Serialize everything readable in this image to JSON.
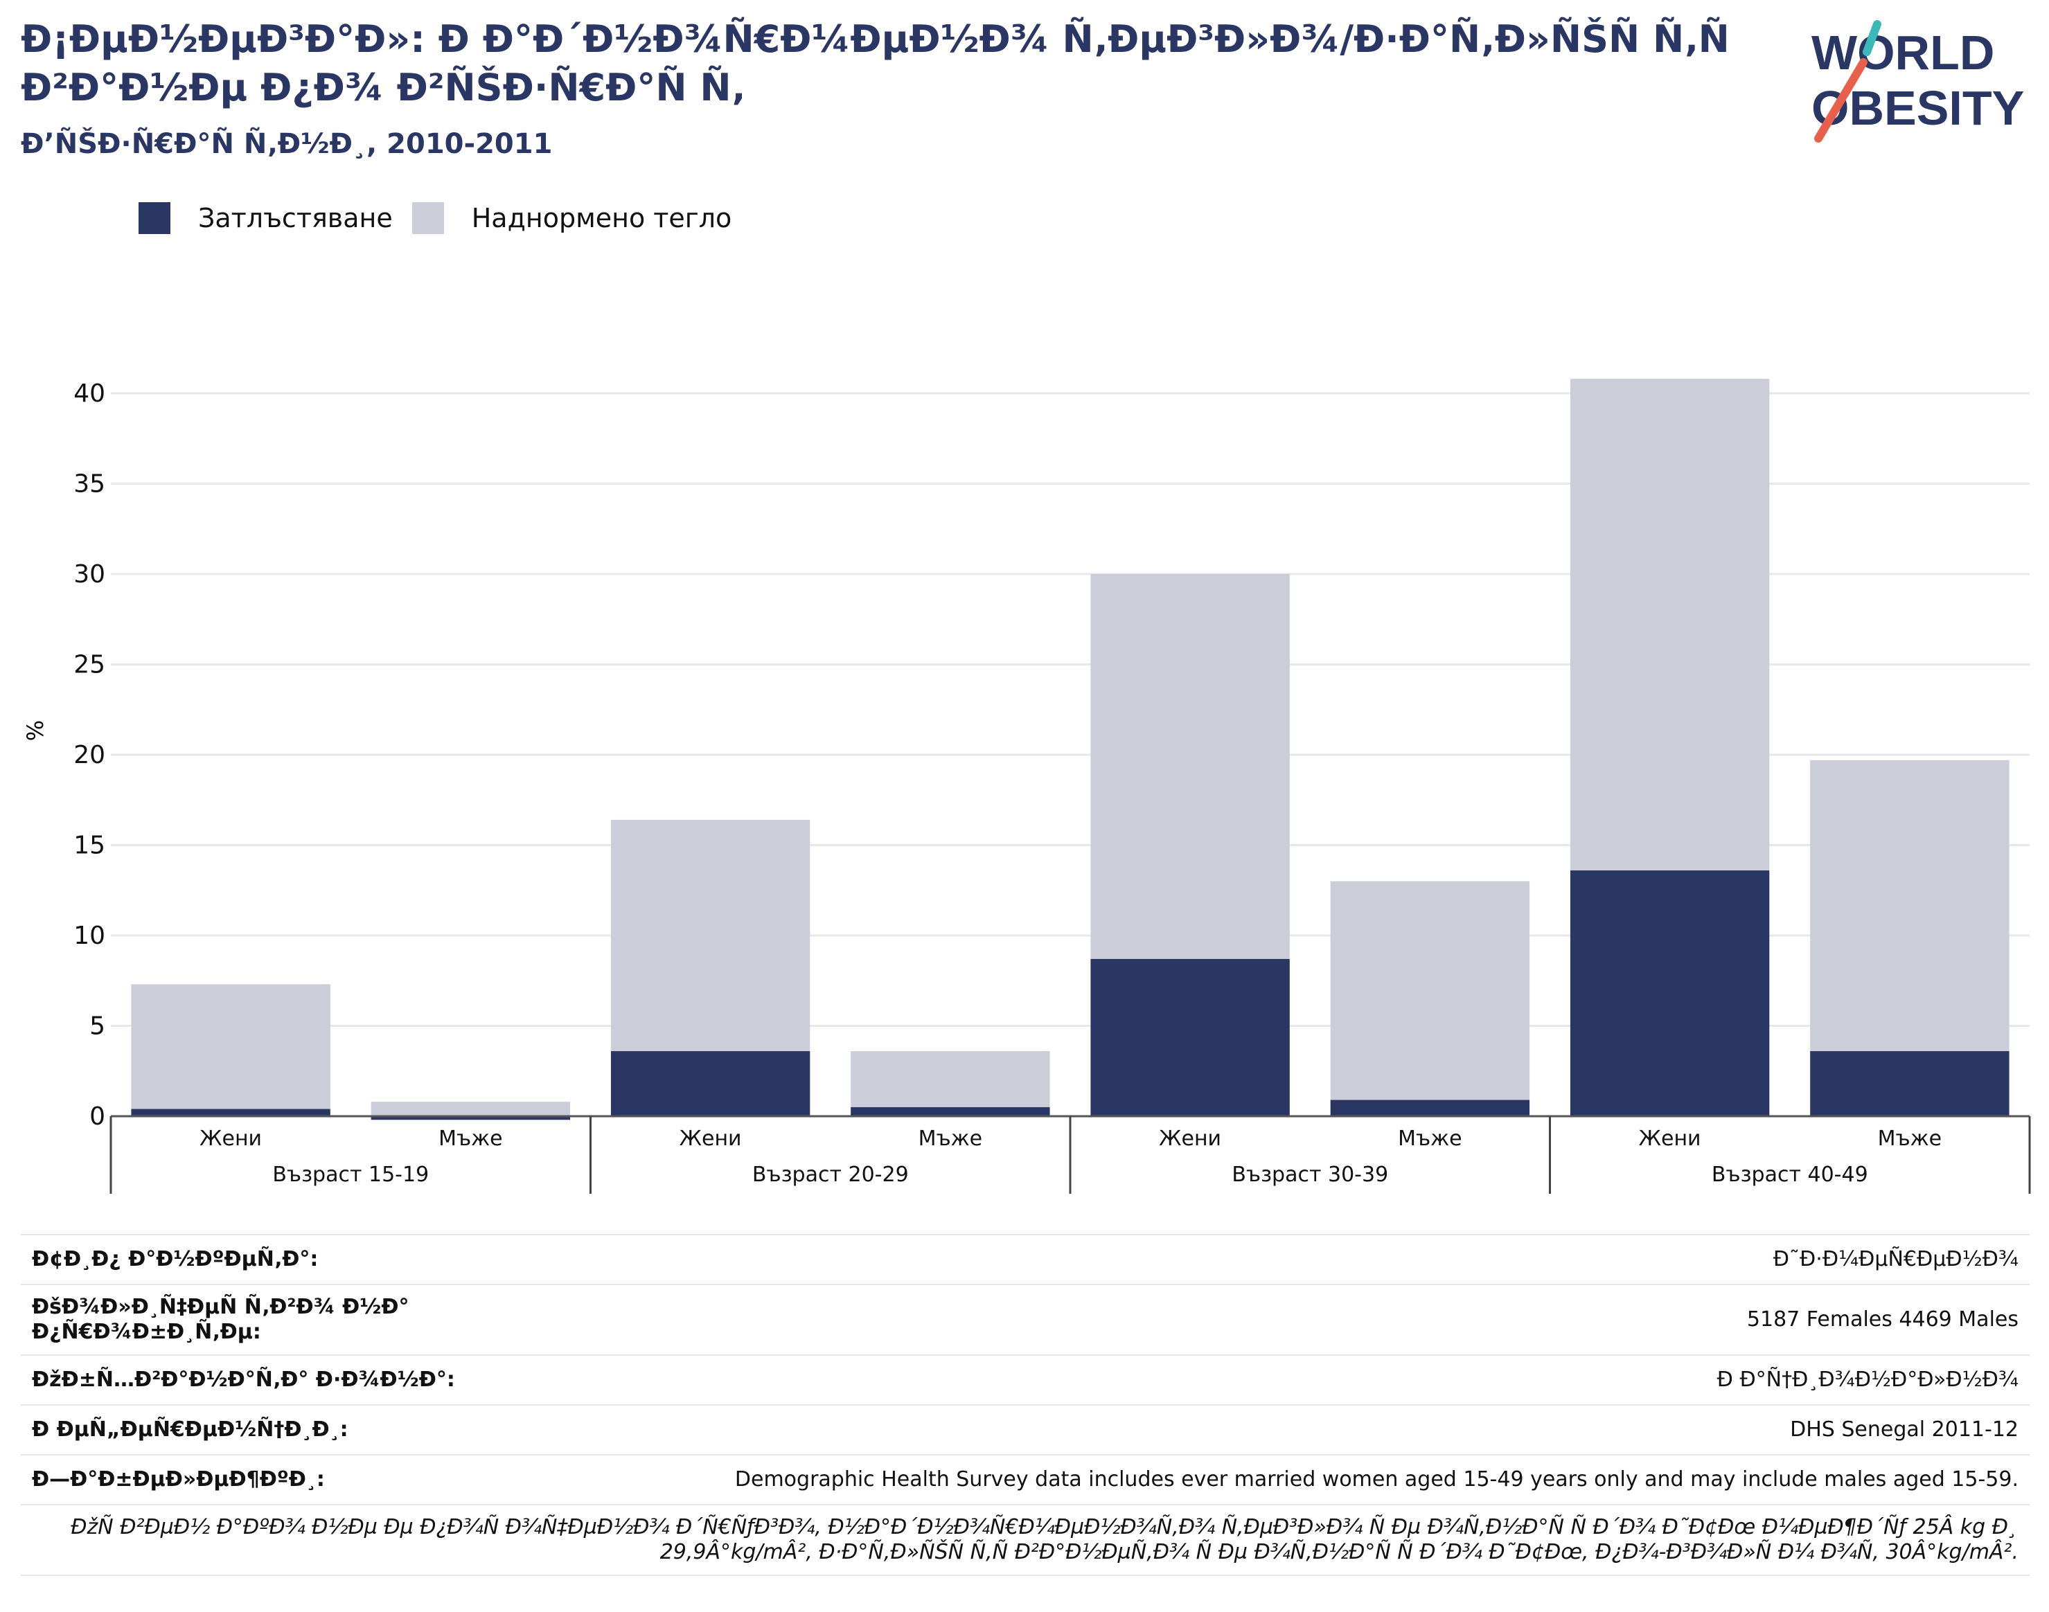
{
  "header": {
    "title": "Ð¡ÐµÐ½ÐµÐ³Ð°Ð»: Ð Ð°Ð´Ð½Ð¾Ñ€Ð¼ÐµÐ½Ð¾ Ñ‚ÐµÐ³Ð»Ð¾/Ð·Ð°Ñ‚Ð»ÑŠÑ Ñ‚Ñ Ð²Ð°Ð½Ðµ Ð¿Ð¾ Ð²ÑŠÐ·Ñ€Ð°Ñ Ñ‚",
    "subtitle": "Ð’ÑŠÐ·Ñ€Ð°Ñ Ñ‚Ð½Ð¸, 2010-2011",
    "logo_text_1": "WORLD",
    "logo_text_2": "OBESITY"
  },
  "chart_data": {
    "type": "bar",
    "stacked": true,
    "groups": [
      "Възраст 15-19",
      "Възраст 20-29",
      "Възраст 30-39",
      "Възраст 40-49"
    ],
    "categories": [
      "Жени",
      "Мъже",
      "Жени",
      "Мъже",
      "Жени",
      "Мъже",
      "Жени",
      "Мъже"
    ],
    "series": [
      {
        "name": "Затлъстяване",
        "color": "#2a3663",
        "values": [
          0.4,
          -0.2,
          3.6,
          0.5,
          8.7,
          0.9,
          13.6,
          3.6
        ]
      },
      {
        "name": "Наднормено тегло",
        "color": "#cbcdd8",
        "values": [
          6.9,
          0.8,
          12.8,
          3.1,
          21.3,
          12.1,
          27.2,
          16.1
        ]
      }
    ],
    "ylabel": "%",
    "ylim": [
      0,
      42
    ],
    "yticks": [
      "0",
      "5",
      "10",
      "15",
      "20",
      "25",
      "30",
      "35",
      "40"
    ],
    "grid": true,
    "legend": "top-left"
  },
  "info": [
    {
      "label": "Ð¢Ð¸Ð¿ Ð°Ð½ÐºÐµÑ‚Ð°:",
      "value": "Ð˜Ð·Ð¼ÐµÑ€ÐµÐ½Ð¾"
    },
    {
      "label": "ÐšÐ¾Ð»Ð¸Ñ‡ÐµÑ Ñ‚Ð²Ð¾ Ð½Ð° Ð¿Ñ€Ð¾Ð±Ð¸Ñ‚Ðµ:",
      "value": "5187 Females 4469 Males"
    },
    {
      "label": "ÐžÐ±Ñ…Ð²Ð°Ð½Ð°Ñ‚Ð° Ð·Ð¾Ð½Ð°:",
      "value": "Ð Ð°Ñ†Ð¸Ð¾Ð½Ð°Ð»Ð½Ð¾"
    },
    {
      "label": "Ð ÐµÑ„ÐµÑ€ÐµÐ½Ñ†Ð¸Ð¸:",
      "value": "DHS Senegal 2011-12"
    },
    {
      "label": "Ð—Ð°Ð±ÐµÐ»ÐµÐ¶ÐºÐ¸:",
      "value": "Demographic Health Survey data includes ever married women aged 15-49 years only and may include males aged 15-59."
    }
  ],
  "note": "ÐžÑ Ð²ÐµÐ½ Ð°ÐºÐ¾ Ð½Ðµ Ðµ Ð¿Ð¾Ñ Ð¾Ñ‡ÐµÐ½Ð¾ Ð´Ñ€ÑƒÐ³Ð¾, Ð½Ð°Ð´Ð½Ð¾Ñ€Ð¼ÐµÐ½Ð¾Ñ‚Ð¾ Ñ‚ÐµÐ³Ð»Ð¾ Ñ Ðµ Ð¾Ñ‚Ð½Ð°Ñ Ñ  Ð´Ð¾ Ð˜Ð¢Ðœ Ð¼ÐµÐ¶Ð´Ñƒ 25Â kg Ð¸ 29,9Â°kg/mÂ², Ð·Ð°Ñ‚Ð»ÑŠÑ Ñ‚Ñ Ð²Ð°Ð½ÐµÑ‚Ð¾ Ñ Ðµ Ð¾Ñ‚Ð½Ð°Ñ Ñ  Ð´Ð¾ Ð˜Ð¢Ðœ, Ð¿Ð¾-Ð³Ð¾Ð»Ñ Ð¼ Ð¾Ñ‚ 30Â°kg/mÂ²."
}
